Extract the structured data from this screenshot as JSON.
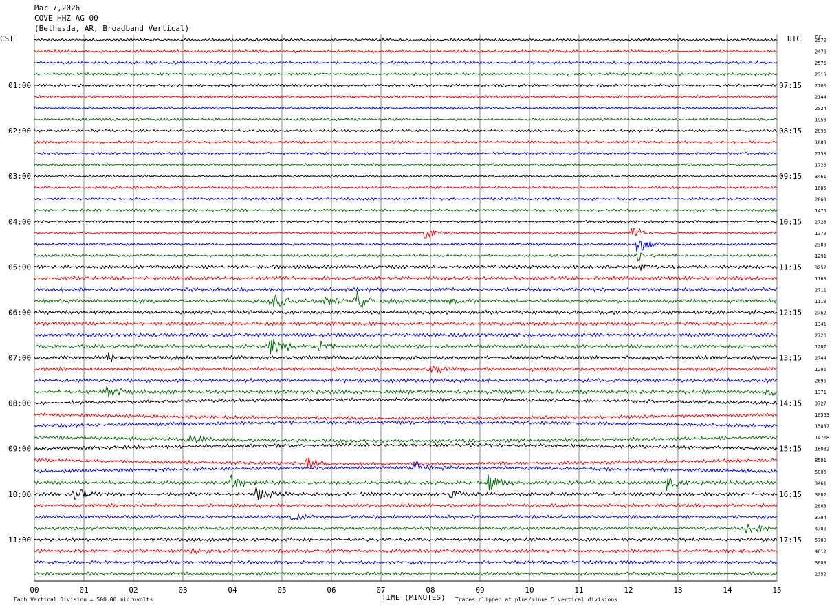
{
  "header": {
    "date": "Mar 7,2026",
    "station": "COVE HHZ AG 00",
    "location": "(Bethesda, AR, Broadband Vertical)"
  },
  "left_tz": "CST",
  "right_tz": "UTC",
  "dc_label": "DC",
  "footer": {
    "scale_note": "Each Vertical Division =  500.00 microvolts",
    "xlabel": "TIME (MINUTES)",
    "clip_note": "Traces clipped at plus/minus 5 vertical divisions"
  },
  "chart_data": {
    "type": "line",
    "title": "COVE HHZ AG 00",
    "xlabel": "TIME (MINUTES)",
    "x_ticks": [
      "00",
      "01",
      "02",
      "03",
      "04",
      "05",
      "06",
      "07",
      "08",
      "09",
      "10",
      "11",
      "12",
      "13",
      "14",
      "15"
    ],
    "xlim": [
      0,
      15
    ],
    "left_hour_labels": [
      "01:00",
      "02:00",
      "03:00",
      "04:00",
      "05:00",
      "06:00",
      "07:00",
      "08:00",
      "09:00",
      "10:00",
      "11:00"
    ],
    "right_hour_labels": [
      "07:15",
      "08:15",
      "09:15",
      "10:15",
      "11:15",
      "12:15",
      "13:15",
      "14:15",
      "15:15",
      "16:15",
      "17:15"
    ],
    "dc_offsets": [
      "2570",
      "2470",
      "2575",
      "2315",
      "2700",
      "2144",
      "2024",
      "1958",
      "2896",
      "1883",
      "2758",
      "1725",
      "3461",
      "1605",
      "2868",
      "1475",
      "2728",
      "1379",
      "2388",
      "1291",
      "3252",
      "1163",
      "2711",
      "1118",
      "2762",
      "1341",
      "2726",
      "1207",
      "2744",
      "1296",
      "2696",
      "1371",
      "3727",
      "10553",
      "15037",
      "14718",
      "16082",
      "8501",
      "5806",
      "3461",
      "3082",
      "2863",
      "3794",
      "4700",
      "5700",
      "4612",
      "3608",
      "2352"
    ],
    "trace_colors": [
      "#000000",
      "#ff0000",
      "#0000ff",
      "#007000"
    ],
    "rows_per_hour": 4,
    "trace_count": 48,
    "events": [
      {
        "row": 17,
        "minute": 7.9,
        "amp": 1.4
      },
      {
        "row": 17,
        "minute": 12.1,
        "amp": 1.6
      },
      {
        "row": 18,
        "minute": 12.2,
        "amp": 2.2
      },
      {
        "row": 19,
        "minute": 12.2,
        "amp": 1.4
      },
      {
        "row": 20,
        "minute": 12.2,
        "amp": 1.1
      },
      {
        "row": 23,
        "minute": 4.8,
        "amp": 2.8
      },
      {
        "row": 23,
        "minute": 5.9,
        "amp": 1.6
      },
      {
        "row": 23,
        "minute": 6.5,
        "amp": 2.2
      },
      {
        "row": 23,
        "minute": 8.4,
        "amp": 1.2
      },
      {
        "row": 27,
        "minute": 4.8,
        "amp": 2.4
      },
      {
        "row": 27,
        "minute": 5.8,
        "amp": 1.2
      },
      {
        "row": 28,
        "minute": 1.5,
        "amp": 1.1
      },
      {
        "row": 29,
        "minute": 8.0,
        "amp": 1.4
      },
      {
        "row": 31,
        "minute": 1.5,
        "amp": 1.4
      },
      {
        "row": 31,
        "minute": 14.8,
        "amp": 1.2
      },
      {
        "row": 35,
        "minute": 3.1,
        "amp": 1.6
      },
      {
        "row": 37,
        "minute": 5.5,
        "amp": 1.8
      },
      {
        "row": 38,
        "minute": 7.7,
        "amp": 1.6
      },
      {
        "row": 39,
        "minute": 9.2,
        "amp": 2.4
      },
      {
        "row": 39,
        "minute": 12.8,
        "amp": 1.8
      },
      {
        "row": 39,
        "minute": 4.0,
        "amp": 2.0
      },
      {
        "row": 40,
        "minute": 0.8,
        "amp": 2.2
      },
      {
        "row": 40,
        "minute": 4.5,
        "amp": 1.6
      },
      {
        "row": 40,
        "minute": 8.4,
        "amp": 1.2
      },
      {
        "row": 42,
        "minute": 5.2,
        "amp": 1.0
      },
      {
        "row": 43,
        "minute": 14.4,
        "amp": 1.6
      },
      {
        "row": 45,
        "minute": 3.2,
        "amp": 0.9
      }
    ]
  }
}
